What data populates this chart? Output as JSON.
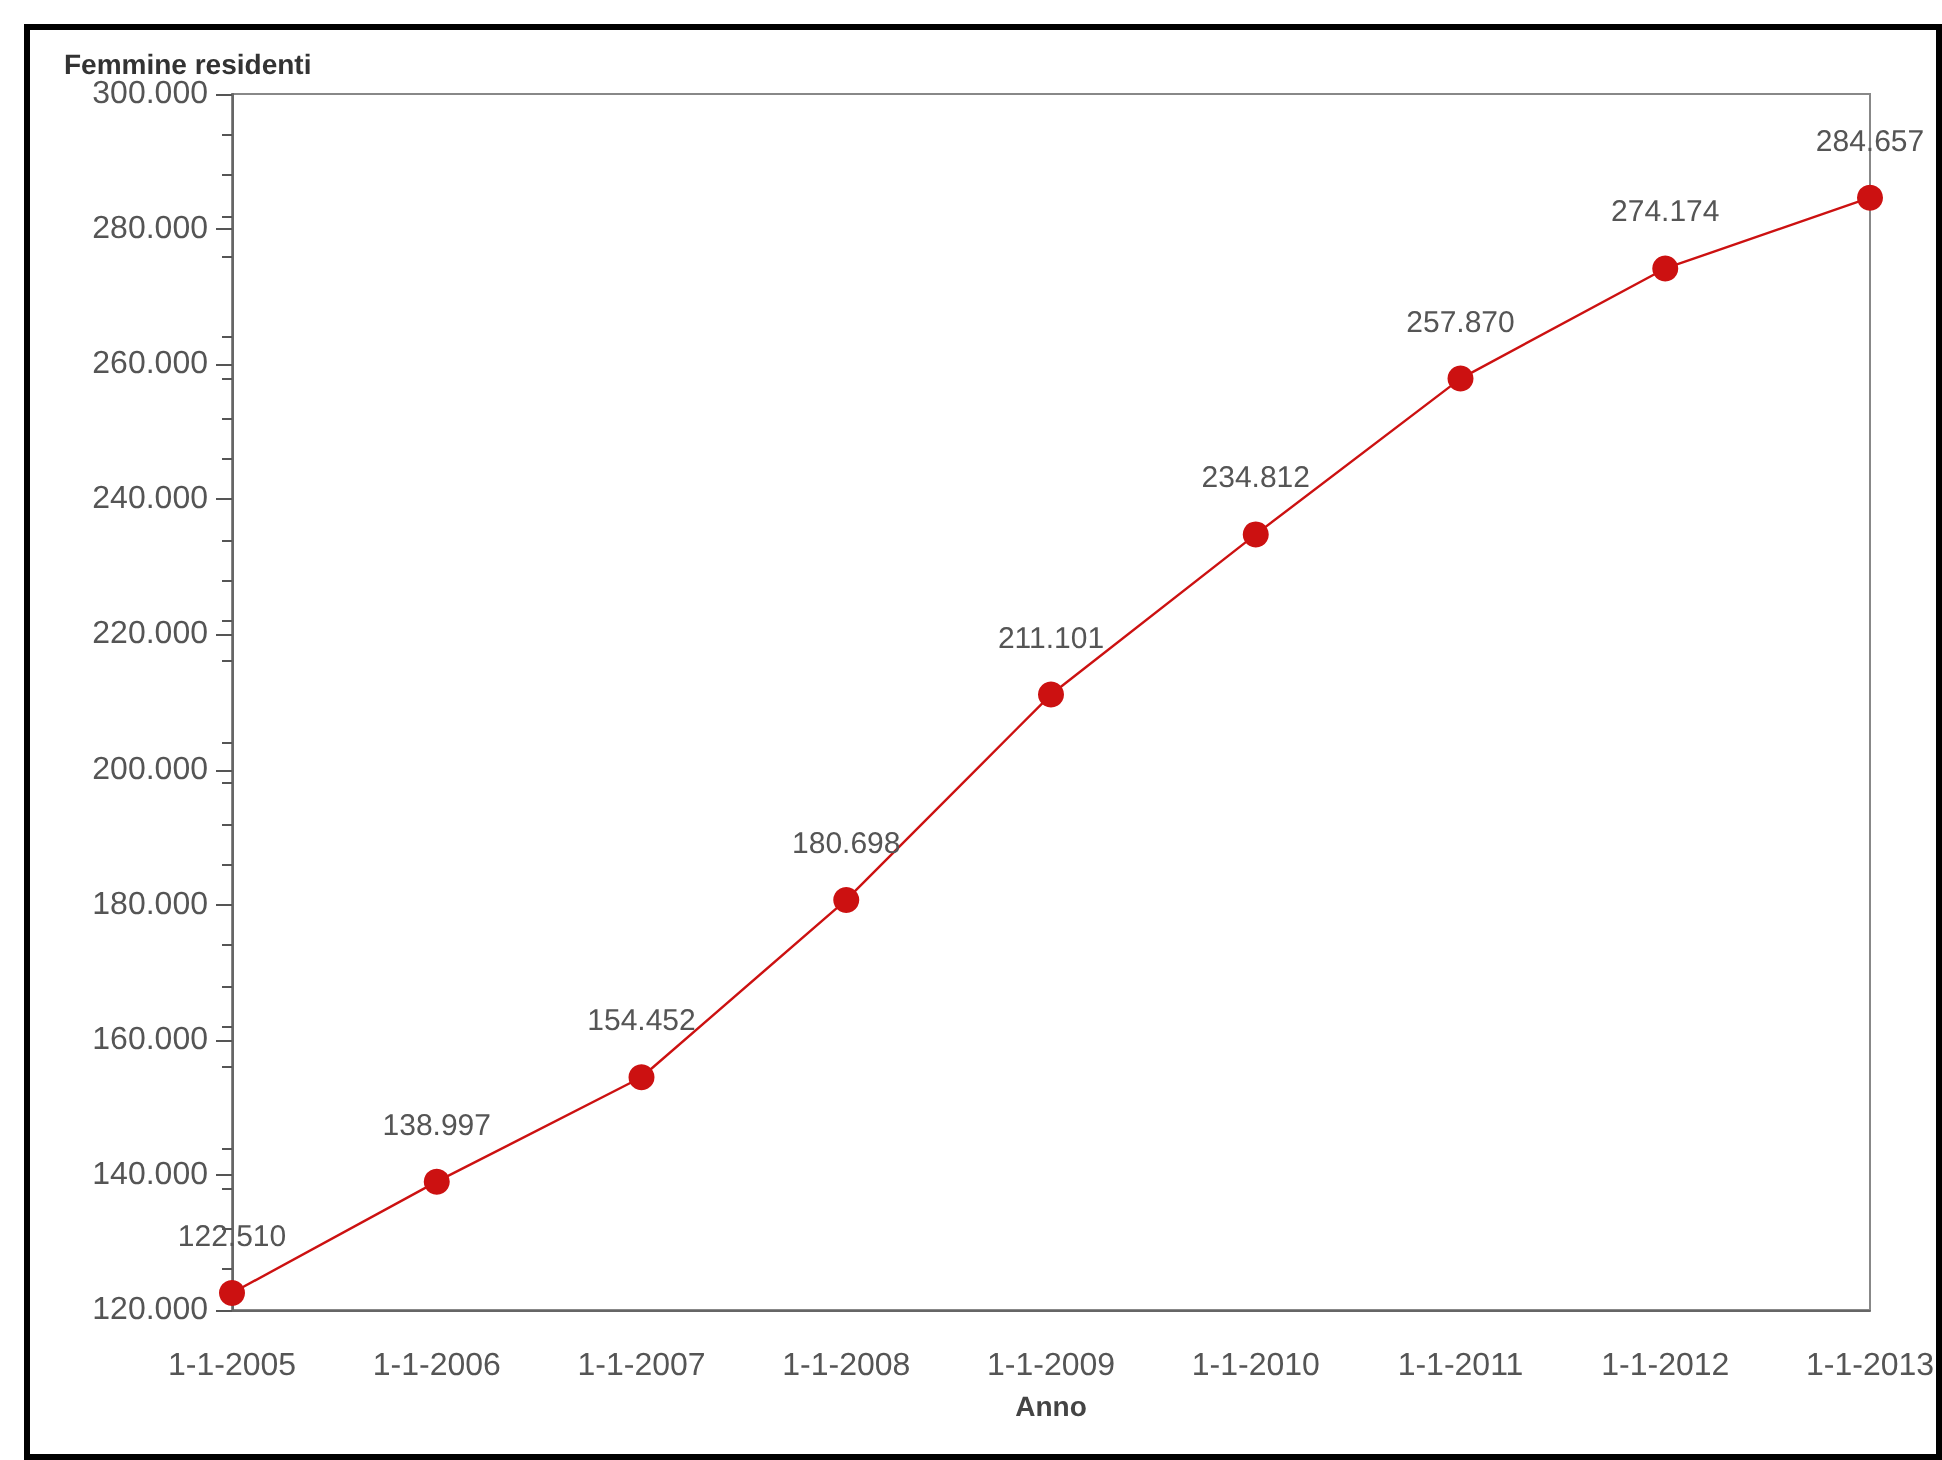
{
  "chart_data": {
    "type": "line",
    "ylabel": "Femmine residenti",
    "xlabel": "Anno",
    "categories": [
      "1-1-2005",
      "1-1-2006",
      "1-1-2007",
      "1-1-2008",
      "1-1-2009",
      "1-1-2010",
      "1-1-2011",
      "1-1-2012",
      "1-1-2013"
    ],
    "series": [
      {
        "color": "#cc1111",
        "values": [
          122510,
          138997,
          154452,
          180698,
          211101,
          234812,
          257870,
          274174,
          284657
        ],
        "value_labels": [
          "122.510",
          "138.997",
          "154.452",
          "180.698",
          "211.101",
          "234.812",
          "257.870",
          "274.174",
          "284.657"
        ]
      }
    ],
    "ylim": [
      120000,
      300000
    ],
    "yticks": [
      {
        "value": 120000,
        "label": "120.000"
      },
      {
        "value": 140000,
        "label": "140.000"
      },
      {
        "value": 160000,
        "label": "160.000"
      },
      {
        "value": 180000,
        "label": "180.000"
      },
      {
        "value": 200000,
        "label": "200.000"
      },
      {
        "value": 220000,
        "label": "220.000"
      },
      {
        "value": 240000,
        "label": "240.000"
      },
      {
        "value": 260000,
        "label": "260.000"
      },
      {
        "value": 280000,
        "label": "280.000"
      },
      {
        "value": 300000,
        "label": "300.000"
      }
    ],
    "grid": false,
    "marker": "circle",
    "line_style": "solid"
  }
}
